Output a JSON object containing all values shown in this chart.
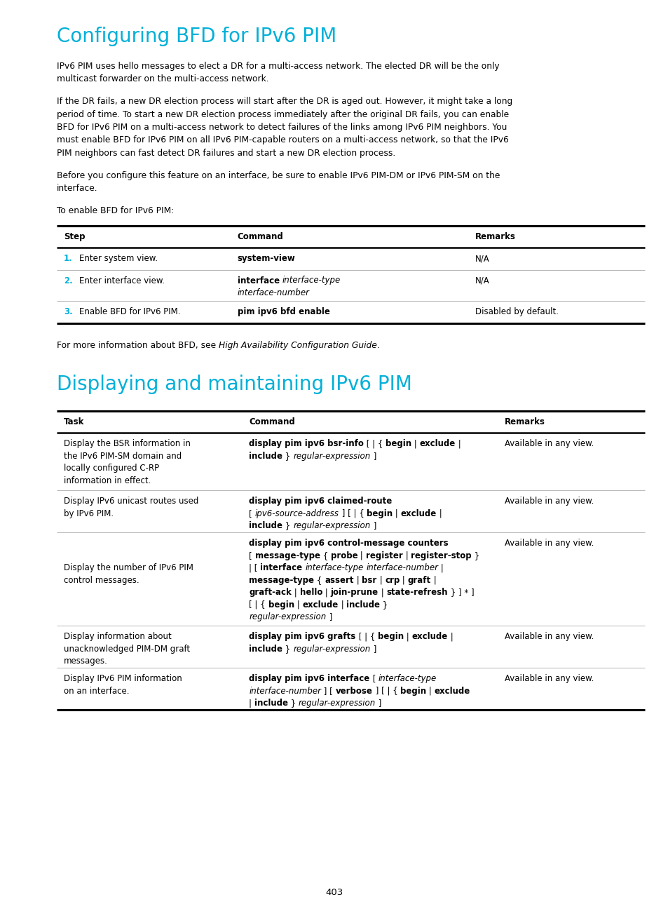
{
  "page_bg": "#ffffff",
  "title_color": "#00b0d8",
  "title1": "Configuring BFD for IPv6 PIM",
  "title2": "Displaying and maintaining IPv6 PIM",
  "para1_lines": [
    "IPv6 PIM uses hello messages to elect a DR for a multi-access network. The elected DR will be the only",
    "multicast forwarder on the multi-access network."
  ],
  "para2_lines": [
    "If the DR fails, a new DR election process will start after the DR is aged out. However, it might take a long",
    "period of time. To start a new DR election process immediately after the original DR fails, you can enable",
    "BFD for IPv6 PIM on a multi-access network to detect failures of the links among IPv6 PIM neighbors. You",
    "must enable BFD for IPv6 PIM on all IPv6 PIM-capable routers on a multi-access network, so that the IPv6",
    "PIM neighbors can fast detect DR failures and start a new DR election process."
  ],
  "para3_lines": [
    "Before you configure this feature on an interface, be sure to enable IPv6 PIM-DM or IPv6 PIM-SM on the",
    "interface."
  ],
  "para4": "To enable BFD for IPv6 PIM:",
  "bfd_note_plain": "For more information about BFD, see ",
  "bfd_note_italic": "High Availability Configuration Guide",
  "bfd_note_end": ".",
  "page_number": "403"
}
